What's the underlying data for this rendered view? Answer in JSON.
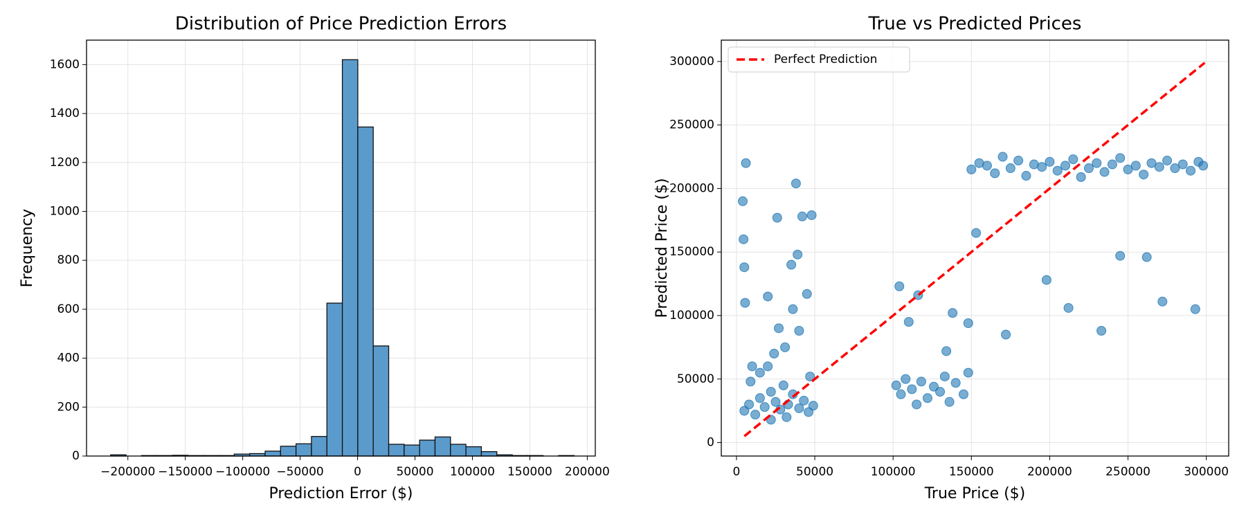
{
  "chart_data": [
    {
      "type": "histogram",
      "title": "Distribution of Price Prediction Errors",
      "xlabel": "Prediction Error ($)",
      "ylabel": "Frequency",
      "color": "#5b9bcc",
      "edgecolor": "#111111",
      "grid": true,
      "bins": [
        -215000,
        -201550,
        -188100,
        -174650,
        -161200,
        -147750,
        -134300,
        -120850,
        -107400,
        -93950,
        -80500,
        -67050,
        -53600,
        -40150,
        -26700,
        -13250,
        200,
        13650,
        27100,
        40550,
        54000,
        67450,
        80900,
        94350,
        107800,
        121250,
        134700,
        148150,
        161600,
        175050,
        188500
      ],
      "values": [
        5,
        0,
        2,
        2,
        3,
        2,
        2,
        2,
        8,
        10,
        20,
        40,
        50,
        80,
        625,
        1620,
        1345,
        450,
        48,
        45,
        65,
        78,
        48,
        38,
        18,
        5,
        2,
        2,
        0,
        2
      ],
      "xlim": [
        -236000,
        207000
      ],
      "ylim": [
        0,
        1700
      ],
      "xticks": [
        {
          "value": -200000,
          "label": "−200000"
        },
        {
          "value": -150000,
          "label": "−150000"
        },
        {
          "value": -100000,
          "label": "−100000"
        },
        {
          "value": -50000,
          "label": "−50000"
        },
        0,
        50000,
        100000,
        150000,
        200000
      ],
      "yticks": [
        0,
        200,
        400,
        600,
        800,
        1000,
        1200,
        1400,
        1600
      ]
    },
    {
      "type": "scatter",
      "title": "True vs Predicted Prices",
      "xlabel": "True Price ($)",
      "ylabel": "Predicted Price ($)",
      "grid": true,
      "legend": "upper left",
      "xlim": [
        -9700,
        314300
      ],
      "ylim": [
        -10600,
        316800
      ],
      "xticks": [
        0,
        50000,
        100000,
        150000,
        200000,
        250000,
        300000
      ],
      "yticks": [
        0,
        50000,
        100000,
        150000,
        200000,
        250000,
        300000
      ],
      "points": {
        "color": "#1f77b4",
        "x": [
          5000,
          8000,
          12000,
          15000,
          18000,
          22000,
          25000,
          28000,
          30000,
          33000,
          36000,
          40000,
          43000,
          46000,
          49000,
          6000,
          10000,
          20000,
          26000,
          35000,
          42000,
          48000,
          4000,
          4500,
          5000,
          5500,
          38000,
          39000,
          27000,
          31000,
          36000,
          45000,
          24000,
          20000,
          15000,
          9000,
          40000,
          47000,
          32000,
          22000,
          102000,
          105000,
          108000,
          112000,
          115000,
          118000,
          122000,
          126000,
          130000,
          133000,
          136000,
          140000,
          145000,
          148000,
          104000,
          110000,
          116000,
          134000,
          138000,
          148000,
          150000,
          155000,
          160000,
          165000,
          170000,
          175000,
          180000,
          185000,
          190000,
          195000,
          200000,
          205000,
          210000,
          215000,
          220000,
          225000,
          230000,
          235000,
          240000,
          245000,
          250000,
          255000,
          260000,
          265000,
          270000,
          275000,
          280000,
          285000,
          290000,
          295000,
          298000,
          153000,
          172000,
          198000,
          212000,
          233000,
          262000,
          272000,
          293000,
          245000
        ],
        "y": [
          25000,
          30000,
          22000,
          35000,
          28000,
          40000,
          32000,
          26000,
          45000,
          30000,
          38000,
          27000,
          33000,
          24000,
          29000,
          220000,
          60000,
          115000,
          177000,
          140000,
          178000,
          179000,
          190000,
          160000,
          138000,
          110000,
          204000,
          148000,
          90000,
          75000,
          105000,
          117000,
          70000,
          60000,
          55000,
          48000,
          88000,
          52000,
          20000,
          18000,
          45000,
          38000,
          50000,
          42000,
          30000,
          48000,
          35000,
          44000,
          40000,
          52000,
          32000,
          47000,
          38000,
          55000,
          123000,
          95000,
          116000,
          72000,
          102000,
          94000,
          215000,
          220000,
          218000,
          212000,
          225000,
          216000,
          222000,
          210000,
          219000,
          217000,
          221000,
          214000,
          218000,
          223000,
          209000,
          216000,
          220000,
          213000,
          219000,
          224000,
          215000,
          218000,
          211000,
          220000,
          217000,
          222000,
          216000,
          219000,
          214000,
          221000,
          218000,
          165000,
          85000,
          128000,
          106000,
          88000,
          146000,
          111000,
          105000,
          147000
        ]
      },
      "reference_line": {
        "name": "Perfect Prediction",
        "color": "#ff0000",
        "x": [
          5000,
          299000
        ],
        "y": [
          5000,
          299000
        ]
      }
    }
  ]
}
